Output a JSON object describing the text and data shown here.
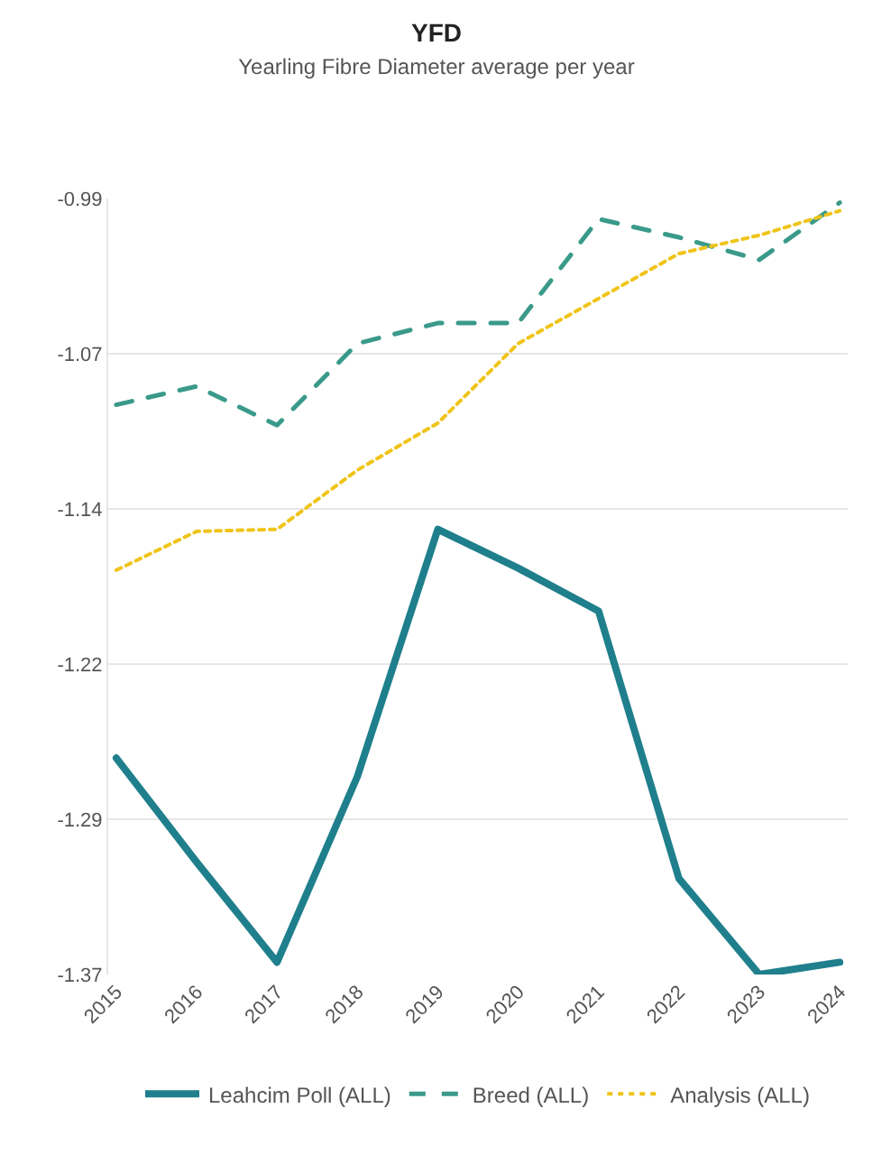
{
  "chart_data": {
    "type": "line",
    "title": "YFD",
    "subtitle": "Yearling Fibre Diameter average per year",
    "categories": [
      "2015",
      "2016",
      "2017",
      "2018",
      "2019",
      "2020",
      "2021",
      "2022",
      "2023",
      "2024"
    ],
    "series": [
      {
        "name": "Leahcim Poll (ALL)",
        "color": "#1f7f8c",
        "line_style": "solid",
        "values": [
          -1.264,
          -1.315,
          -1.364,
          -1.273,
          -1.152,
          -1.171,
          -1.192,
          -1.323,
          -1.37,
          -1.364
        ]
      },
      {
        "name": "Breed (ALL)",
        "color": "#3a9a8a",
        "line_style": "dashed",
        "values": [
          -1.091,
          -1.082,
          -1.101,
          -1.061,
          -1.051,
          -1.051,
          -1.0,
          -1.009,
          -1.02,
          -0.992
        ]
      },
      {
        "name": "Analysis (ALL)",
        "color": "#f0c419",
        "line_style": "dotted",
        "values": [
          -1.172,
          -1.153,
          -1.152,
          -1.123,
          -1.1,
          -1.061,
          -1.039,
          -1.017,
          -1.008,
          -0.996
        ]
      }
    ],
    "ylim": [
      -1.37,
      -0.99
    ],
    "yticks": [
      {
        "value": -0.99,
        "label": "-0.99"
      },
      {
        "value": -1.066,
        "label": "-1.07"
      },
      {
        "value": -1.142,
        "label": "-1.14"
      },
      {
        "value": -1.218,
        "label": "-1.22"
      },
      {
        "value": -1.294,
        "label": "-1.29"
      },
      {
        "value": -1.37,
        "label": "-1.37"
      }
    ],
    "grid": "y",
    "legend": "bottom",
    "marker": "none"
  }
}
